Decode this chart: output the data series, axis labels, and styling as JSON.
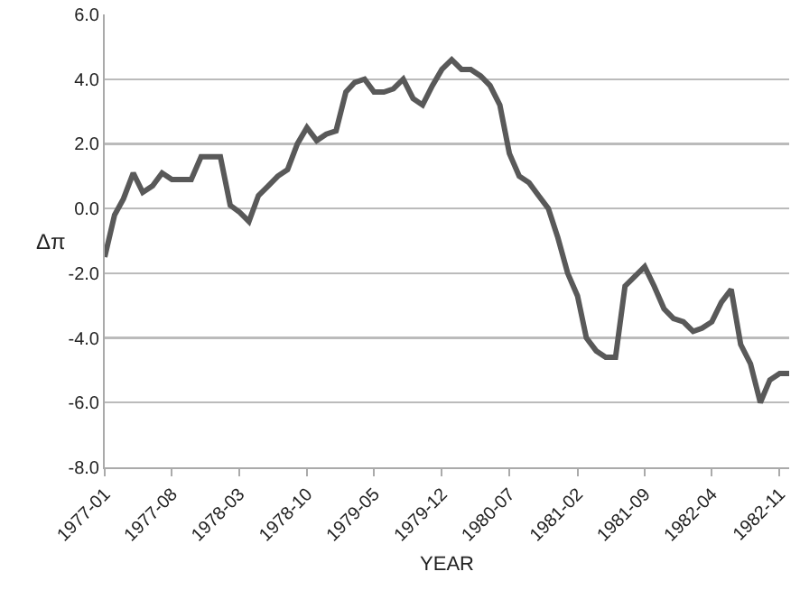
{
  "chart_data": {
    "type": "line",
    "xlabel": "YEAR",
    "ylabel": "Δπ",
    "x": [
      "1977-01",
      "1977-02",
      "1977-03",
      "1977-04",
      "1977-05",
      "1977-06",
      "1977-07",
      "1977-08",
      "1977-09",
      "1977-10",
      "1977-11",
      "1977-12",
      "1978-01",
      "1978-02",
      "1978-03",
      "1978-04",
      "1978-05",
      "1978-06",
      "1978-07",
      "1978-08",
      "1978-09",
      "1978-10",
      "1978-11",
      "1978-12",
      "1979-01",
      "1979-02",
      "1979-03",
      "1979-04",
      "1979-05",
      "1979-06",
      "1979-07",
      "1979-08",
      "1979-09",
      "1979-10",
      "1979-11",
      "1979-12",
      "1980-01",
      "1980-02",
      "1980-03",
      "1980-04",
      "1980-05",
      "1980-06",
      "1980-07",
      "1980-08",
      "1980-09",
      "1980-10",
      "1980-11",
      "1980-12",
      "1981-01",
      "1981-02",
      "1981-03",
      "1981-04",
      "1981-05",
      "1981-06",
      "1981-07",
      "1981-08",
      "1981-09",
      "1981-10",
      "1981-11",
      "1981-12",
      "1982-01",
      "1982-02",
      "1982-03",
      "1982-04",
      "1982-05",
      "1982-06",
      "1982-07",
      "1982-08",
      "1982-09",
      "1982-10",
      "1982-11",
      "1982-12"
    ],
    "series": [
      {
        "color": "#595959",
        "values": [
          -1.5,
          -0.2,
          0.3,
          1.1,
          0.5,
          0.7,
          1.1,
          0.9,
          0.9,
          0.9,
          1.6,
          1.6,
          1.6,
          0.1,
          -0.1,
          -0.4,
          0.4,
          0.7,
          1.0,
          1.2,
          2.0,
          2.5,
          2.1,
          2.3,
          2.4,
          3.6,
          3.9,
          4.0,
          3.6,
          3.6,
          3.7,
          4.0,
          3.4,
          3.2,
          3.8,
          4.3,
          4.6,
          4.3,
          4.3,
          4.1,
          3.8,
          3.2,
          1.7,
          1.0,
          0.8,
          0.4,
          0.0,
          -0.9,
          -2.0,
          -2.7,
          -4.0,
          -4.4,
          -4.6,
          -4.6,
          -2.4,
          -2.1,
          -1.8,
          -2.4,
          -3.1,
          -3.4,
          -3.5,
          -3.8,
          -3.7,
          -3.5,
          -2.9,
          -2.5,
          -4.2,
          -4.8,
          -6.0,
          -5.3,
          -5.1,
          -5.1
        ]
      }
    ],
    "xlim": [
      "1977-01",
      "1982-12"
    ],
    "xticks": [
      {
        "value": "1977-01",
        "label": "1977-01"
      },
      {
        "value": "1977-08",
        "label": "1977-08"
      },
      {
        "value": "1978-03",
        "label": "1978-03"
      },
      {
        "value": "1978-10",
        "label": "1978-10"
      },
      {
        "value": "1979-05",
        "label": "1979-05"
      },
      {
        "value": "1979-12",
        "label": "1979-12"
      },
      {
        "value": "1980-07",
        "label": "1980-07"
      },
      {
        "value": "1981-02",
        "label": "1981-02"
      },
      {
        "value": "1981-09",
        "label": "1981-09"
      },
      {
        "value": "1982-04",
        "label": "1982-04"
      },
      {
        "value": "1982-11",
        "label": "1982-11"
      }
    ],
    "ylim": [
      -8,
      6
    ],
    "yticks": [
      {
        "value": -8,
        "label": "-8.0"
      },
      {
        "value": -6,
        "label": "-6.0"
      },
      {
        "value": -4,
        "label": "-4.0"
      },
      {
        "value": -2,
        "label": "-2.0"
      },
      {
        "value": 0,
        "label": "0.0"
      },
      {
        "value": 2,
        "label": "2.0"
      },
      {
        "value": 4,
        "label": "4.0"
      },
      {
        "value": 6,
        "label": "6.0"
      }
    ],
    "grid": "y",
    "marker": "none",
    "line_style": "solid"
  }
}
